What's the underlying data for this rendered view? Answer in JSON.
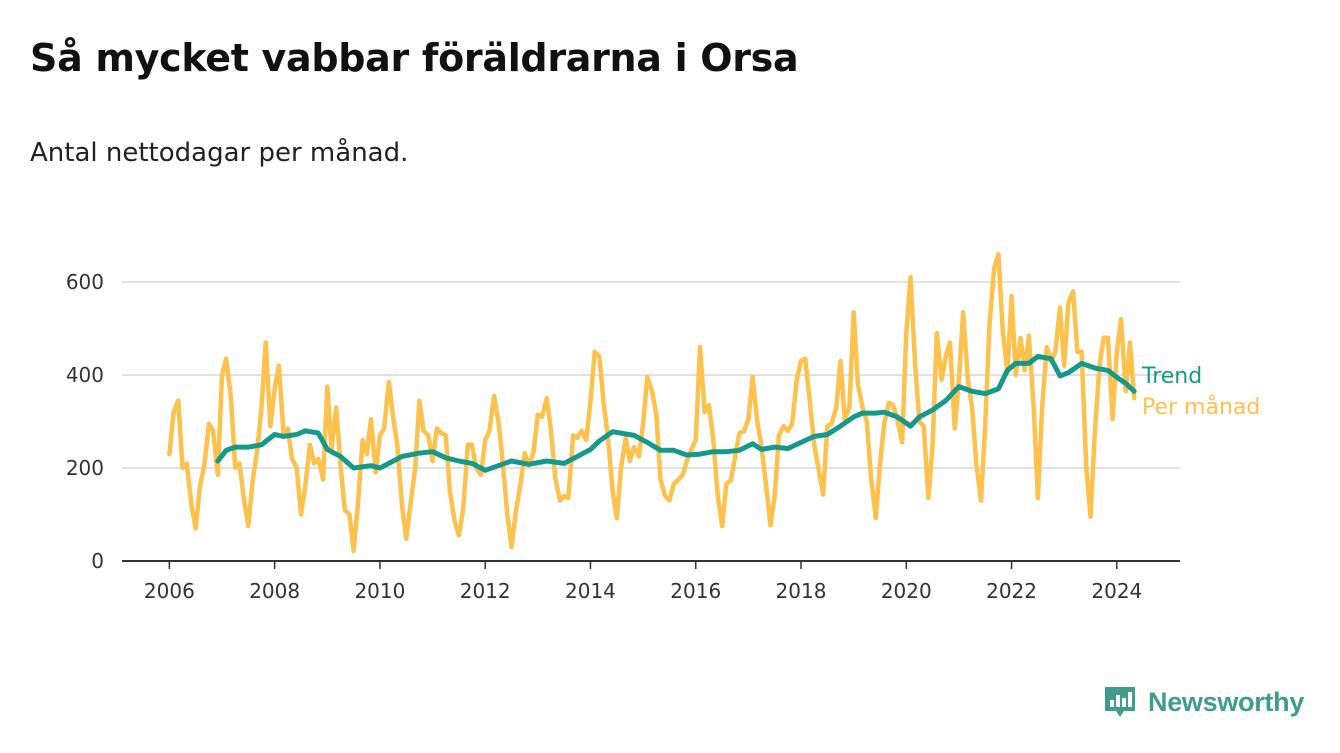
{
  "title": "Så mycket vabbar föräldrarna i Orsa",
  "subtitle": "Antal nettodagar per månad.",
  "brand": {
    "name": "Newsworthy",
    "icon": "newsworthy-logo-icon"
  },
  "colors": {
    "trend": "#16988a",
    "monthly": "#fcc24d",
    "grid": "#d9d9d9",
    "axis": "#333333"
  },
  "chart_data": {
    "type": "line",
    "x_unit": "decimal year",
    "xlim": [
      2005.1,
      2025.2
    ],
    "ylim": [
      0,
      600
    ],
    "yticks": [
      0,
      200,
      400,
      600
    ],
    "xticks": [
      2006,
      2008,
      2010,
      2012,
      2014,
      2016,
      2018,
      2020,
      2022,
      2024
    ],
    "xtick_labels": [
      "2006",
      "2008",
      "2010",
      "2012",
      "2014",
      "2016",
      "2018",
      "2020",
      "2022",
      "2024"
    ],
    "ytick_labels": [
      "0",
      "200",
      "400",
      "600"
    ],
    "grid": "horizontal",
    "legend": "right, at line ends",
    "series": [
      {
        "name": "Per månad",
        "color": "#fcc24d",
        "points": [
          [
            2006.0,
            230
          ],
          [
            2006.08,
            320
          ],
          [
            2006.17,
            345
          ],
          [
            2006.25,
            200
          ],
          [
            2006.33,
            210
          ],
          [
            2006.42,
            120
          ],
          [
            2006.5,
            70
          ],
          [
            2006.58,
            160
          ],
          [
            2006.67,
            210
          ],
          [
            2006.75,
            295
          ],
          [
            2006.83,
            280
          ],
          [
            2006.92,
            185
          ],
          [
            2007.0,
            400
          ],
          [
            2007.08,
            435
          ],
          [
            2007.17,
            350
          ],
          [
            2007.25,
            200
          ],
          [
            2007.33,
            210
          ],
          [
            2007.42,
            130
          ],
          [
            2007.5,
            75
          ],
          [
            2007.58,
            170
          ],
          [
            2007.67,
            240
          ],
          [
            2007.75,
            330
          ],
          [
            2007.83,
            470
          ],
          [
            2007.92,
            290
          ],
          [
            2008.0,
            370
          ],
          [
            2008.08,
            420
          ],
          [
            2008.17,
            270
          ],
          [
            2008.25,
            285
          ],
          [
            2008.33,
            220
          ],
          [
            2008.42,
            200
          ],
          [
            2008.5,
            100
          ],
          [
            2008.58,
            160
          ],
          [
            2008.67,
            250
          ],
          [
            2008.75,
            210
          ],
          [
            2008.83,
            220
          ],
          [
            2008.92,
            175
          ],
          [
            2009.0,
            375
          ],
          [
            2009.08,
            240
          ],
          [
            2009.17,
            330
          ],
          [
            2009.25,
            210
          ],
          [
            2009.33,
            110
          ],
          [
            2009.42,
            100
          ],
          [
            2009.5,
            22
          ],
          [
            2009.58,
            120
          ],
          [
            2009.67,
            260
          ],
          [
            2009.75,
            230
          ],
          [
            2009.83,
            305
          ],
          [
            2009.92,
            190
          ],
          [
            2010.0,
            270
          ],
          [
            2010.08,
            285
          ],
          [
            2010.17,
            385
          ],
          [
            2010.25,
            310
          ],
          [
            2010.33,
            250
          ],
          [
            2010.42,
            120
          ],
          [
            2010.5,
            48
          ],
          [
            2010.58,
            120
          ],
          [
            2010.67,
            200
          ],
          [
            2010.75,
            345
          ],
          [
            2010.83,
            280
          ],
          [
            2010.92,
            270
          ],
          [
            2011.0,
            215
          ],
          [
            2011.08,
            285
          ],
          [
            2011.17,
            275
          ],
          [
            2011.25,
            270
          ],
          [
            2011.33,
            150
          ],
          [
            2011.42,
            85
          ],
          [
            2011.5,
            55
          ],
          [
            2011.58,
            110
          ],
          [
            2011.67,
            250
          ],
          [
            2011.75,
            250
          ],
          [
            2011.83,
            200
          ],
          [
            2011.92,
            185
          ],
          [
            2012.0,
            260
          ],
          [
            2012.08,
            280
          ],
          [
            2012.17,
            355
          ],
          [
            2012.25,
            300
          ],
          [
            2012.33,
            215
          ],
          [
            2012.42,
            100
          ],
          [
            2012.5,
            30
          ],
          [
            2012.58,
            105
          ],
          [
            2012.67,
            165
          ],
          [
            2012.75,
            232
          ],
          [
            2012.83,
            205
          ],
          [
            2012.92,
            235
          ],
          [
            2013.0,
            315
          ],
          [
            2013.08,
            310
          ],
          [
            2013.17,
            350
          ],
          [
            2013.25,
            280
          ],
          [
            2013.33,
            180
          ],
          [
            2013.42,
            130
          ],
          [
            2013.5,
            140
          ],
          [
            2013.58,
            135
          ],
          [
            2013.67,
            270
          ],
          [
            2013.75,
            265
          ],
          [
            2013.83,
            280
          ],
          [
            2013.92,
            260
          ],
          [
            2014.0,
            345
          ],
          [
            2014.08,
            450
          ],
          [
            2014.17,
            440
          ],
          [
            2014.25,
            340
          ],
          [
            2014.33,
            270
          ],
          [
            2014.42,
            150
          ],
          [
            2014.5,
            92
          ],
          [
            2014.58,
            200
          ],
          [
            2014.67,
            265
          ],
          [
            2014.75,
            215
          ],
          [
            2014.83,
            245
          ],
          [
            2014.92,
            225
          ],
          [
            2015.0,
            295
          ],
          [
            2015.08,
            395
          ],
          [
            2015.17,
            365
          ],
          [
            2015.25,
            315
          ],
          [
            2015.33,
            175
          ],
          [
            2015.42,
            140
          ],
          [
            2015.5,
            130
          ],
          [
            2015.58,
            165
          ],
          [
            2015.67,
            175
          ],
          [
            2015.75,
            185
          ],
          [
            2015.83,
            215
          ],
          [
            2015.92,
            240
          ],
          [
            2016.0,
            260
          ],
          [
            2016.08,
            460
          ],
          [
            2016.17,
            320
          ],
          [
            2016.25,
            335
          ],
          [
            2016.33,
            265
          ],
          [
            2016.42,
            140
          ],
          [
            2016.5,
            75
          ],
          [
            2016.58,
            165
          ],
          [
            2016.67,
            175
          ],
          [
            2016.75,
            225
          ],
          [
            2016.83,
            275
          ],
          [
            2016.92,
            280
          ],
          [
            2017.0,
            305
          ],
          [
            2017.08,
            395
          ],
          [
            2017.17,
            300
          ],
          [
            2017.25,
            245
          ],
          [
            2017.33,
            170
          ],
          [
            2017.42,
            77
          ],
          [
            2017.5,
            140
          ],
          [
            2017.58,
            270
          ],
          [
            2017.67,
            290
          ],
          [
            2017.75,
            280
          ],
          [
            2017.83,
            295
          ],
          [
            2017.92,
            390
          ],
          [
            2018.0,
            430
          ],
          [
            2018.08,
            435
          ],
          [
            2018.17,
            340
          ],
          [
            2018.25,
            250
          ],
          [
            2018.33,
            200
          ],
          [
            2018.42,
            143
          ],
          [
            2018.5,
            290
          ],
          [
            2018.58,
            295
          ],
          [
            2018.67,
            330
          ],
          [
            2018.75,
            430
          ],
          [
            2018.83,
            305
          ],
          [
            2018.92,
            330
          ],
          [
            2019.0,
            535
          ],
          [
            2019.08,
            380
          ],
          [
            2019.17,
            330
          ],
          [
            2019.25,
            300
          ],
          [
            2019.33,
            180
          ],
          [
            2019.42,
            93
          ],
          [
            2019.5,
            210
          ],
          [
            2019.58,
            295
          ],
          [
            2019.67,
            340
          ],
          [
            2019.75,
            335
          ],
          [
            2019.83,
            305
          ],
          [
            2019.92,
            255
          ],
          [
            2020.0,
            490
          ],
          [
            2020.08,
            610
          ],
          [
            2020.17,
            420
          ],
          [
            2020.25,
            300
          ],
          [
            2020.33,
            290
          ],
          [
            2020.42,
            135
          ],
          [
            2020.5,
            250
          ],
          [
            2020.58,
            490
          ],
          [
            2020.67,
            390
          ],
          [
            2020.75,
            440
          ],
          [
            2020.83,
            470
          ],
          [
            2020.92,
            285
          ],
          [
            2021.0,
            390
          ],
          [
            2021.08,
            535
          ],
          [
            2021.17,
            390
          ],
          [
            2021.25,
            330
          ],
          [
            2021.33,
            210
          ],
          [
            2021.42,
            130
          ],
          [
            2021.5,
            290
          ],
          [
            2021.58,
            510
          ],
          [
            2021.67,
            630
          ],
          [
            2021.75,
            660
          ],
          [
            2021.83,
            500
          ],
          [
            2021.92,
            405
          ],
          [
            2022.0,
            570
          ],
          [
            2022.08,
            400
          ],
          [
            2022.17,
            480
          ],
          [
            2022.25,
            410
          ],
          [
            2022.33,
            485
          ],
          [
            2022.42,
            330
          ],
          [
            2022.5,
            135
          ],
          [
            2022.58,
            330
          ],
          [
            2022.67,
            460
          ],
          [
            2022.75,
            430
          ],
          [
            2022.83,
            450
          ],
          [
            2022.92,
            545
          ],
          [
            2023.0,
            420
          ],
          [
            2023.08,
            555
          ],
          [
            2023.17,
            580
          ],
          [
            2023.25,
            450
          ],
          [
            2023.33,
            450
          ],
          [
            2023.42,
            200
          ],
          [
            2023.5,
            95
          ],
          [
            2023.58,
            270
          ],
          [
            2023.67,
            420
          ],
          [
            2023.75,
            480
          ],
          [
            2023.83,
            480
          ],
          [
            2023.92,
            305
          ],
          [
            2024.0,
            450
          ],
          [
            2024.08,
            520
          ],
          [
            2024.17,
            365
          ],
          [
            2024.25,
            470
          ],
          [
            2024.33,
            350
          ]
        ]
      },
      {
        "name": "Trend",
        "color": "#16988a",
        "points": [
          [
            2006.92,
            215
          ],
          [
            2007.08,
            238
          ],
          [
            2007.25,
            245
          ],
          [
            2007.5,
            245
          ],
          [
            2007.75,
            250
          ],
          [
            2008.0,
            272
          ],
          [
            2008.17,
            268
          ],
          [
            2008.42,
            272
          ],
          [
            2008.58,
            280
          ],
          [
            2008.83,
            275
          ],
          [
            2009.0,
            240
          ],
          [
            2009.25,
            225
          ],
          [
            2009.5,
            200
          ],
          [
            2009.83,
            205
          ],
          [
            2010.0,
            200
          ],
          [
            2010.17,
            210
          ],
          [
            2010.42,
            225
          ],
          [
            2010.75,
            232
          ],
          [
            2011.0,
            235
          ],
          [
            2011.25,
            222
          ],
          [
            2011.5,
            215
          ],
          [
            2011.75,
            210
          ],
          [
            2012.0,
            195
          ],
          [
            2012.25,
            205
          ],
          [
            2012.5,
            215
          ],
          [
            2012.83,
            208
          ],
          [
            2013.17,
            215
          ],
          [
            2013.5,
            210
          ],
          [
            2013.75,
            225
          ],
          [
            2014.0,
            240
          ],
          [
            2014.17,
            258
          ],
          [
            2014.42,
            278
          ],
          [
            2014.58,
            275
          ],
          [
            2014.83,
            270
          ],
          [
            2015.08,
            255
          ],
          [
            2015.33,
            238
          ],
          [
            2015.58,
            238
          ],
          [
            2015.83,
            228
          ],
          [
            2016.08,
            230
          ],
          [
            2016.33,
            235
          ],
          [
            2016.58,
            235
          ],
          [
            2016.83,
            238
          ],
          [
            2017.08,
            252
          ],
          [
            2017.25,
            240
          ],
          [
            2017.5,
            245
          ],
          [
            2017.75,
            242
          ],
          [
            2018.0,
            255
          ],
          [
            2018.25,
            268
          ],
          [
            2018.5,
            272
          ],
          [
            2018.75,
            290
          ],
          [
            2019.0,
            310
          ],
          [
            2019.17,
            318
          ],
          [
            2019.42,
            318
          ],
          [
            2019.58,
            320
          ],
          [
            2019.83,
            310
          ],
          [
            2020.08,
            290
          ],
          [
            2020.25,
            310
          ],
          [
            2020.5,
            325
          ],
          [
            2020.75,
            345
          ],
          [
            2021.0,
            375
          ],
          [
            2021.25,
            365
          ],
          [
            2021.5,
            360
          ],
          [
            2021.75,
            370
          ],
          [
            2021.92,
            410
          ],
          [
            2022.08,
            425
          ],
          [
            2022.33,
            425
          ],
          [
            2022.5,
            440
          ],
          [
            2022.75,
            435
          ],
          [
            2022.92,
            398
          ],
          [
            2023.08,
            405
          ],
          [
            2023.33,
            425
          ],
          [
            2023.58,
            415
          ],
          [
            2023.83,
            410
          ],
          [
            2024.0,
            395
          ],
          [
            2024.17,
            382
          ],
          [
            2024.33,
            365
          ]
        ]
      }
    ]
  }
}
